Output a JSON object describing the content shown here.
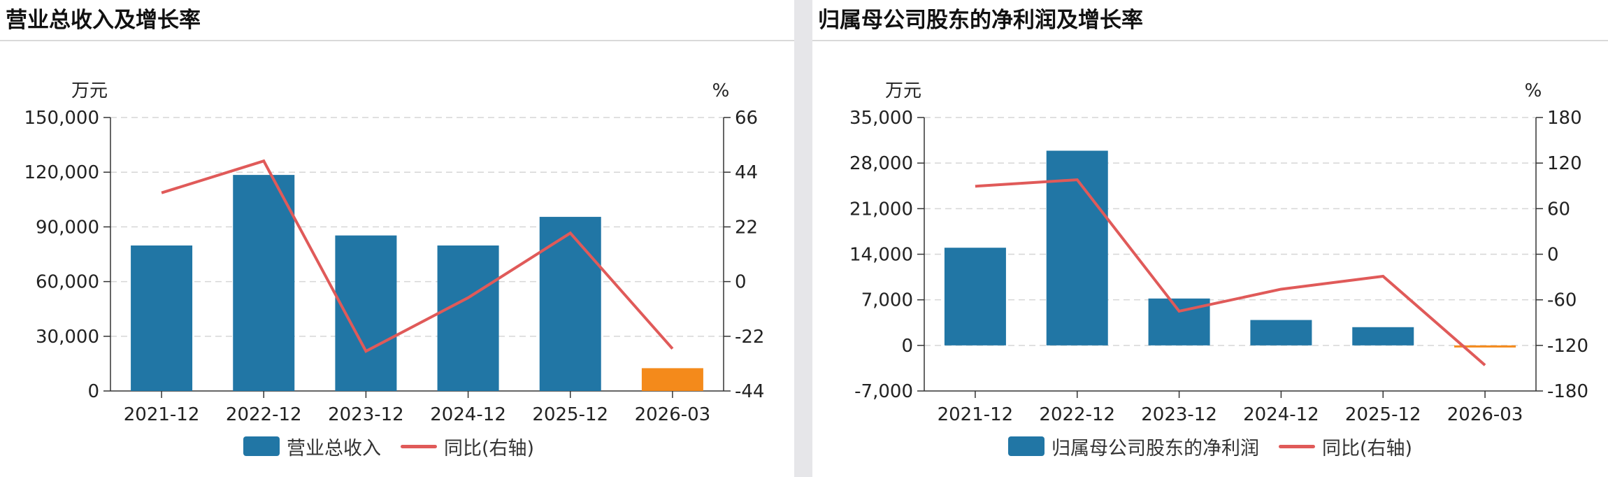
{
  "charts": [
    {
      "title": "营业总收入及增长率",
      "left_unit": "万元",
      "right_unit": "%",
      "legend": {
        "bar": "营业总收入",
        "line": "同比(右轴)"
      },
      "colors": {
        "bar": "#2176a5",
        "bar_forecast": "#f48a1b",
        "line": "#e05a59"
      }
    },
    {
      "title": "归属母公司股东的净利润及增长率",
      "left_unit": "万元",
      "right_unit": "%",
      "legend": {
        "bar": "归属母公司股东的净利润",
        "line": "同比(右轴)"
      },
      "colors": {
        "bar": "#2176a5",
        "bar_forecast": "#f48a1b",
        "line": "#e05a59"
      }
    }
  ],
  "chart_data": [
    {
      "type": "bar",
      "title": "营业总收入及增长率",
      "categories": [
        "2021-12",
        "2022-12",
        "2023-12",
        "2024-12",
        "2025-12",
        "2026-03"
      ],
      "series": [
        {
          "name": "营业总收入",
          "type": "bar",
          "axis": "left",
          "values": [
            79800,
            118500,
            85300,
            79800,
            95500,
            12500
          ],
          "highlight_last": true
        },
        {
          "name": "同比(右轴)",
          "type": "line",
          "axis": "right",
          "values": [
            35.7,
            48.5,
            -28.0,
            -6.5,
            19.5,
            -27.0
          ]
        }
      ],
      "left_axis": {
        "min": 0,
        "max": 150000,
        "ticks": [
          "0",
          "30,000",
          "60,000",
          "90,000",
          "120,000",
          "150,000"
        ]
      },
      "right_axis": {
        "min": -44,
        "max": 66,
        "ticks": [
          "-44",
          "-22",
          "0",
          "22",
          "44",
          "66"
        ]
      },
      "grid": true,
      "legend_position": "bottom"
    },
    {
      "type": "bar",
      "title": "归属母公司股东的净利润及增长率",
      "categories": [
        "2021-12",
        "2022-12",
        "2023-12",
        "2024-12",
        "2025-12",
        "2026-03"
      ],
      "series": [
        {
          "name": "归属母公司股东的净利润",
          "type": "bar",
          "axis": "left",
          "values": [
            15000,
            29900,
            7200,
            3900,
            2800,
            -120
          ],
          "highlight_last": true
        },
        {
          "name": "同比(右轴)",
          "type": "line",
          "axis": "right",
          "values": [
            89.5,
            98.0,
            -75.0,
            -46.0,
            -29.0,
            -146.0
          ]
        }
      ],
      "left_axis": {
        "min": -7000,
        "max": 35000,
        "ticks": [
          "-7,000",
          "0",
          "7,000",
          "14,000",
          "21,000",
          "28,000",
          "35,000"
        ]
      },
      "right_axis": {
        "min": -180,
        "max": 180,
        "ticks": [
          "-180",
          "-120",
          "-60",
          "0",
          "60",
          "120",
          "180"
        ]
      },
      "grid": true,
      "legend_position": "bottom"
    }
  ]
}
